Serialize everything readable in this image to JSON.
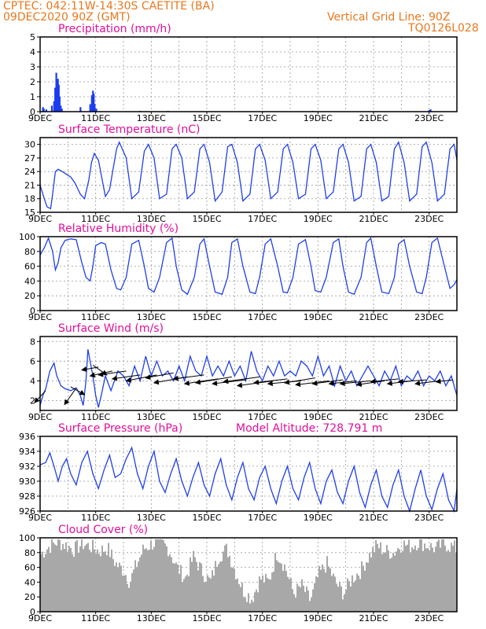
{
  "header": {
    "line1": "CPTEC:   042:11W-14:30S  CAETITE (BA)",
    "line2": "09DEC2020 90Z (GMT)",
    "grid_note": "Vertical Grid Line: 90Z",
    "code": "TQ0126L028"
  },
  "colors": {
    "header": "#e8781e",
    "title": "#e0109a",
    "line": "#2040e8",
    "precip_bar": "#1a3cf0",
    "cloud_bar": "#a8a8a8",
    "arrow": "#000000"
  },
  "chart_data": [
    {
      "id": "precip",
      "type": "bar",
      "title": "Precipitation (mm/h)",
      "x_range_days": [
        0,
        15
      ],
      "x_ticks": [
        "9DEC",
        "11DEC",
        "13DEC",
        "15DEC",
        "17DEC",
        "19DEC",
        "21DEC",
        "23DEC"
      ],
      "x_tick_days": [
        0,
        2,
        4,
        6,
        8,
        10,
        12,
        14
      ],
      "ylim": [
        0,
        5
      ],
      "y_ticks": [
        0,
        1,
        2,
        3,
        4,
        5
      ],
      "bars": [
        [
          0.1,
          0.3
        ],
        [
          0.13,
          0.2
        ],
        [
          0.22,
          0.15
        ],
        [
          0.42,
          0.4
        ],
        [
          0.5,
          0.7
        ],
        [
          0.54,
          1.6
        ],
        [
          0.58,
          2.6
        ],
        [
          0.61,
          2.0
        ],
        [
          0.64,
          2.2
        ],
        [
          0.67,
          1.8
        ],
        [
          0.7,
          1.0
        ],
        [
          0.74,
          0.4
        ],
        [
          0.78,
          0.2
        ],
        [
          1.45,
          0.3
        ],
        [
          1.8,
          0.5
        ],
        [
          1.86,
          1.1
        ],
        [
          1.9,
          1.4
        ],
        [
          1.93,
          1.2
        ],
        [
          1.96,
          0.5
        ],
        [
          2.02,
          0.2
        ],
        [
          3.6,
          0.05
        ],
        [
          4.6,
          0.05
        ],
        [
          9.8,
          0.05
        ],
        [
          14.0,
          0.1
        ],
        [
          14.05,
          0.15
        ]
      ]
    },
    {
      "id": "temp",
      "type": "line",
      "title": "Surface Temperature (nC)",
      "x_range_days": [
        0,
        15
      ],
      "x_ticks": [
        "9DEC",
        "11DEC",
        "13DEC",
        "15DEC",
        "17DEC",
        "19DEC",
        "21DEC",
        "23DEC"
      ],
      "x_tick_days": [
        0,
        2,
        4,
        6,
        8,
        10,
        12,
        14
      ],
      "ylim": [
        15,
        31.5
      ],
      "y_ticks": [
        15,
        18,
        21,
        24,
        27,
        30
      ],
      "series_x": [
        0.0,
        0.15,
        0.25,
        0.38,
        0.45,
        0.55,
        0.65,
        0.8,
        0.92,
        1.1,
        1.25,
        1.45,
        1.6,
        1.75,
        1.85,
        1.95,
        2.1,
        2.35,
        2.5,
        2.75,
        2.85,
        3.1,
        3.3,
        3.55,
        3.75,
        3.9,
        4.1,
        4.3,
        4.55,
        4.75,
        4.9,
        5.1,
        5.3,
        5.55,
        5.75,
        5.9,
        6.1,
        6.3,
        6.55,
        6.75,
        6.9,
        7.1,
        7.3,
        7.55,
        7.75,
        7.9,
        8.1,
        8.3,
        8.55,
        8.75,
        8.9,
        9.1,
        9.3,
        9.55,
        9.75,
        9.9,
        10.1,
        10.3,
        10.55,
        10.75,
        10.9,
        11.1,
        11.3,
        11.55,
        11.75,
        11.9,
        12.1,
        12.3,
        12.55,
        12.75,
        12.9,
        13.1,
        13.3,
        13.55,
        13.75,
        13.9,
        14.1,
        14.3,
        14.55,
        14.75,
        14.9,
        15.0
      ],
      "series_y": [
        21,
        18,
        16.2,
        15.8,
        19,
        24,
        24.5,
        24,
        23.5,
        22.8,
        21.5,
        19,
        18,
        22,
        26,
        28,
        26.5,
        18.5,
        20,
        29,
        30.5,
        27,
        18,
        19.5,
        28.5,
        30,
        27,
        18,
        19,
        29,
        30,
        27,
        18,
        19.5,
        29,
        30,
        26,
        17.5,
        19.5,
        29.5,
        30,
        26,
        17.5,
        19,
        29,
        30,
        26.5,
        18,
        19.5,
        29,
        30,
        26,
        18,
        19,
        29,
        30,
        26.5,
        18,
        19.5,
        29,
        30,
        26,
        17.5,
        18.5,
        29,
        30,
        26,
        17.5,
        18.5,
        29,
        30.5,
        26,
        17.5,
        19,
        29.5,
        30.5,
        26,
        17.5,
        19,
        29,
        30,
        26.5
      ]
    },
    {
      "id": "rh",
      "type": "line",
      "title": "Relative Humidity (%)",
      "x_range_days": [
        0,
        15
      ],
      "x_ticks": [
        "9DEC",
        "11DEC",
        "13DEC",
        "15DEC",
        "17DEC",
        "19DEC",
        "21DEC",
        "23DEC"
      ],
      "x_tick_days": [
        0,
        2,
        4,
        6,
        8,
        10,
        12,
        14
      ],
      "ylim": [
        0,
        100
      ],
      "y_ticks": [
        0,
        20,
        40,
        60,
        80,
        100
      ],
      "series_x": [
        0.0,
        0.15,
        0.3,
        0.45,
        0.55,
        0.65,
        0.75,
        0.9,
        1.1,
        1.3,
        1.5,
        1.65,
        1.8,
        1.9,
        2.0,
        2.2,
        2.35,
        2.55,
        2.75,
        2.9,
        3.1,
        3.3,
        3.55,
        3.75,
        3.9,
        4.1,
        4.3,
        4.55,
        4.75,
        4.9,
        5.1,
        5.3,
        5.55,
        5.75,
        5.9,
        6.1,
        6.3,
        6.55,
        6.75,
        6.9,
        7.1,
        7.3,
        7.55,
        7.75,
        7.9,
        8.1,
        8.3,
        8.55,
        8.75,
        8.9,
        9.1,
        9.3,
        9.55,
        9.75,
        9.9,
        10.1,
        10.3,
        10.55,
        10.75,
        10.9,
        11.1,
        11.3,
        11.55,
        11.75,
        11.9,
        12.1,
        12.3,
        12.55,
        12.75,
        12.9,
        13.1,
        13.3,
        13.55,
        13.75,
        13.9,
        14.1,
        14.3,
        14.55,
        14.75,
        14.9,
        15.0
      ],
      "series_y": [
        75,
        85,
        98,
        80,
        55,
        65,
        85,
        95,
        97,
        96,
        65,
        45,
        40,
        60,
        88,
        92,
        90,
        55,
        30,
        28,
        45,
        90,
        95,
        60,
        30,
        25,
        45,
        92,
        98,
        60,
        28,
        22,
        45,
        90,
        97,
        60,
        25,
        22,
        45,
        92,
        97,
        60,
        25,
        23,
        45,
        90,
        97,
        60,
        25,
        24,
        45,
        90,
        96,
        60,
        27,
        25,
        45,
        92,
        97,
        60,
        25,
        22,
        45,
        92,
        98,
        60,
        25,
        23,
        45,
        90,
        96,
        60,
        25,
        23,
        45,
        92,
        98,
        60,
        30,
        35,
        42
      ]
    },
    {
      "id": "wind",
      "type": "line",
      "title": "Surface Wind (m/s)",
      "x_range_days": [
        0,
        15
      ],
      "x_ticks": [
        "9DEC",
        "11DEC",
        "13DEC",
        "15DEC",
        "17DEC",
        "19DEC",
        "21DEC",
        "23DEC"
      ],
      "x_tick_days": [
        0,
        2,
        4,
        6,
        8,
        10,
        12,
        14
      ],
      "ylim": [
        1,
        8.5
      ],
      "y_ticks": [
        2,
        4,
        6,
        8
      ],
      "series_x": [
        0.0,
        0.1,
        0.2,
        0.35,
        0.5,
        0.6,
        0.75,
        0.9,
        1.1,
        1.3,
        1.45,
        1.55,
        1.65,
        1.72,
        1.8,
        1.9,
        2.0,
        2.1,
        2.2,
        2.35,
        2.55,
        2.8,
        3.0,
        3.2,
        3.4,
        3.6,
        3.8,
        4.0,
        4.2,
        4.4,
        4.6,
        4.8,
        5.0,
        5.2,
        5.4,
        5.6,
        5.8,
        6.0,
        6.2,
        6.4,
        6.6,
        6.8,
        7.0,
        7.2,
        7.4,
        7.6,
        7.8,
        8.0,
        8.2,
        8.4,
        8.6,
        8.8,
        9.0,
        9.2,
        9.4,
        9.6,
        9.8,
        10.0,
        10.2,
        10.4,
        10.6,
        10.8,
        11.0,
        11.2,
        11.4,
        11.6,
        11.8,
        12.0,
        12.2,
        12.4,
        12.6,
        12.8,
        13.0,
        13.2,
        13.4,
        13.6,
        13.8,
        14.0,
        14.2,
        14.4,
        14.6,
        14.8,
        15.0
      ],
      "series_y": [
        1.5,
        2.5,
        3.2,
        5.0,
        5.8,
        4.5,
        3.5,
        3.2,
        3.0,
        3.3,
        2.5,
        1.5,
        4.0,
        7.2,
        6.0,
        4.5,
        2.5,
        1.3,
        2.5,
        4.5,
        3.0,
        5.0,
        4.5,
        3.5,
        5.5,
        4.0,
        6.5,
        4.5,
        6.0,
        4.5,
        5.0,
        4.0,
        5.5,
        4.0,
        6.5,
        5.0,
        4.5,
        6.5,
        4.5,
        5.5,
        4.5,
        6.0,
        4.5,
        5.5,
        4.0,
        7.0,
        5.0,
        4.0,
        5.5,
        4.5,
        6.0,
        4.5,
        5.0,
        4.5,
        6.0,
        5.5,
        4.5,
        6.5,
        4.5,
        5.5,
        3.5,
        5.5,
        4.0,
        5.0,
        3.5,
        4.5,
        5.5,
        4.5,
        3.5,
        5.0,
        4.0,
        5.5,
        3.5,
        4.5,
        4.0,
        5.0,
        3.5,
        4.5,
        4.0,
        5.0,
        3.5,
        4.5,
        2.5
      ],
      "arrows": [
        [
          0.2,
          3.0,
          -0.4,
          -1.2
        ],
        [
          1.1,
          3.4,
          0.5,
          -0.8
        ],
        [
          1.28,
          3.2,
          -0.4,
          -1.6
        ],
        [
          1.9,
          5.6,
          0.5,
          -1.0
        ],
        [
          2.1,
          5.4,
          -0.6,
          -0.3
        ],
        [
          2.6,
          5.0,
          -0.8,
          -0.5
        ],
        [
          3.1,
          5.0,
          -1.0,
          -0.4
        ],
        [
          3.6,
          4.6,
          -1.0,
          -0.4
        ],
        [
          4.2,
          4.6,
          -1.1,
          -0.6
        ],
        [
          4.8,
          4.8,
          -1.0,
          -0.5
        ],
        [
          5.3,
          4.4,
          -1.2,
          -0.6
        ],
        [
          5.9,
          4.6,
          -1.1,
          -0.4
        ],
        [
          6.4,
          4.2,
          -1.2,
          -0.5
        ],
        [
          6.9,
          4.4,
          -1.3,
          -0.6
        ],
        [
          7.4,
          4.1,
          -1.2,
          -0.4
        ],
        [
          7.9,
          4.4,
          -1.3,
          -0.5
        ],
        [
          8.4,
          4.0,
          -1.3,
          -0.5
        ],
        [
          8.9,
          4.2,
          -1.2,
          -0.4
        ],
        [
          9.4,
          4.0,
          -1.2,
          -0.3
        ],
        [
          9.9,
          4.3,
          -1.1,
          -0.5
        ],
        [
          10.4,
          4.0,
          -1.2,
          -0.4
        ],
        [
          10.9,
          4.1,
          -1.1,
          -0.4
        ],
        [
          11.4,
          4.0,
          -1.0,
          -0.3
        ],
        [
          11.9,
          4.0,
          -1.1,
          -0.3
        ],
        [
          12.4,
          4.0,
          -1.0,
          -0.4
        ],
        [
          12.9,
          4.2,
          -1.0,
          -0.3
        ],
        [
          13.4,
          4.0,
          -0.9,
          -0.3
        ],
        [
          13.9,
          4.1,
          -1.0,
          -0.2
        ],
        [
          14.4,
          4.0,
          -0.9,
          -0.3
        ],
        [
          14.85,
          4.1,
          -0.6,
          -0.2
        ]
      ]
    },
    {
      "id": "press",
      "type": "line",
      "title": "Surface Pressure (hPa)",
      "annotation": "Model Altitude: 728.791  m",
      "x_range_days": [
        0,
        15
      ],
      "x_ticks": [
        "9DEC",
        "11DEC",
        "13DEC",
        "15DEC",
        "17DEC",
        "19DEC",
        "21DEC",
        "23DEC"
      ],
      "x_tick_days": [
        0,
        2,
        4,
        6,
        8,
        10,
        12,
        14
      ],
      "ylim": [
        926,
        936
      ],
      "y_ticks": [
        926,
        928,
        930,
        932,
        934,
        936
      ],
      "series_x": [
        0.0,
        0.2,
        0.35,
        0.5,
        0.65,
        0.8,
        0.95,
        1.1,
        1.3,
        1.5,
        1.7,
        1.9,
        2.1,
        2.3,
        2.5,
        2.7,
        2.9,
        3.1,
        3.3,
        3.5,
        3.7,
        3.9,
        4.1,
        4.3,
        4.5,
        4.7,
        4.9,
        5.1,
        5.3,
        5.5,
        5.7,
        5.9,
        6.1,
        6.3,
        6.5,
        6.7,
        6.9,
        7.1,
        7.3,
        7.5,
        7.7,
        7.9,
        8.1,
        8.3,
        8.5,
        8.7,
        8.9,
        9.1,
        9.3,
        9.5,
        9.7,
        9.9,
        10.1,
        10.3,
        10.5,
        10.7,
        10.9,
        11.1,
        11.3,
        11.5,
        11.7,
        11.9,
        12.1,
        12.3,
        12.5,
        12.7,
        12.9,
        13.1,
        13.3,
        13.5,
        13.7,
        13.9,
        14.1,
        14.3,
        14.5,
        14.7,
        14.9,
        15.0
      ],
      "series_y": [
        932.2,
        932.5,
        933.8,
        932.0,
        930.0,
        932.0,
        933.0,
        931.0,
        929.5,
        932.5,
        934.0,
        931.0,
        929.0,
        931.5,
        933.5,
        930.5,
        931.0,
        933.0,
        934.5,
        931.0,
        929.0,
        932.0,
        934.0,
        930.0,
        928.5,
        931.0,
        933.0,
        930.0,
        928.0,
        930.5,
        932.5,
        929.5,
        928.0,
        931.0,
        933.0,
        929.5,
        927.5,
        930.5,
        932.5,
        929.0,
        927.5,
        930.5,
        932.0,
        929.0,
        927.0,
        930.0,
        932.0,
        929.0,
        927.5,
        930.5,
        932.5,
        929.0,
        927.0,
        930.0,
        931.5,
        928.5,
        927.0,
        930.0,
        932.0,
        928.5,
        926.5,
        929.5,
        931.5,
        928.0,
        926.5,
        929.5,
        931.5,
        928.0,
        926.0,
        929.0,
        931.5,
        928.0,
        926.2,
        929.0,
        931.0,
        927.5,
        926.0,
        929.0
      ]
    },
    {
      "id": "cloud",
      "type": "bar",
      "title": "Cloud Cover (%)",
      "x_range_days": [
        0,
        15
      ],
      "x_ticks": [
        "9DEC",
        "11DEC",
        "13DEC",
        "15DEC",
        "17DEC",
        "19DEC",
        "21DEC",
        "23DEC"
      ],
      "x_tick_days": [
        0,
        2,
        4,
        6,
        8,
        10,
        12,
        14
      ],
      "ylim": [
        0,
        100
      ],
      "y_ticks": [
        0,
        20,
        40,
        60,
        80,
        100
      ],
      "profile": [
        [
          0.0,
          78
        ],
        [
          0.3,
          88
        ],
        [
          0.6,
          95
        ],
        [
          0.9,
          90
        ],
        [
          1.2,
          84
        ],
        [
          1.5,
          92
        ],
        [
          1.8,
          88
        ],
        [
          2.1,
          82
        ],
        [
          2.4,
          86
        ],
        [
          2.7,
          65
        ],
        [
          3.0,
          55
        ],
        [
          3.2,
          40
        ],
        [
          3.4,
          60
        ],
        [
          3.7,
          85
        ],
        [
          4.0,
          92
        ],
        [
          4.3,
          95
        ],
        [
          4.6,
          85
        ],
        [
          4.9,
          60
        ],
        [
          5.2,
          45
        ],
        [
          5.5,
          75
        ],
        [
          5.8,
          55
        ],
        [
          6.1,
          40
        ],
        [
          6.4,
          75
        ],
        [
          6.7,
          85
        ],
        [
          7.0,
          55
        ],
        [
          7.3,
          28
        ],
        [
          7.6,
          18
        ],
        [
          7.9,
          45
        ],
        [
          8.2,
          40
        ],
        [
          8.5,
          80
        ],
        [
          8.8,
          60
        ],
        [
          9.1,
          25
        ],
        [
          9.4,
          35
        ],
        [
          9.7,
          15
        ],
        [
          10.0,
          50
        ],
        [
          10.3,
          65
        ],
        [
          10.6,
          40
        ],
        [
          10.9,
          25
        ],
        [
          11.2,
          45
        ],
        [
          11.5,
          55
        ],
        [
          11.8,
          75
        ],
        [
          12.1,
          90
        ],
        [
          12.4,
          82
        ],
        [
          12.7,
          80
        ],
        [
          13.0,
          92
        ],
        [
          13.3,
          88
        ],
        [
          13.6,
          95
        ],
        [
          13.9,
          90
        ],
        [
          14.2,
          85
        ],
        [
          14.5,
          92
        ],
        [
          14.8,
          88
        ],
        [
          15.0,
          84
        ]
      ]
    }
  ]
}
